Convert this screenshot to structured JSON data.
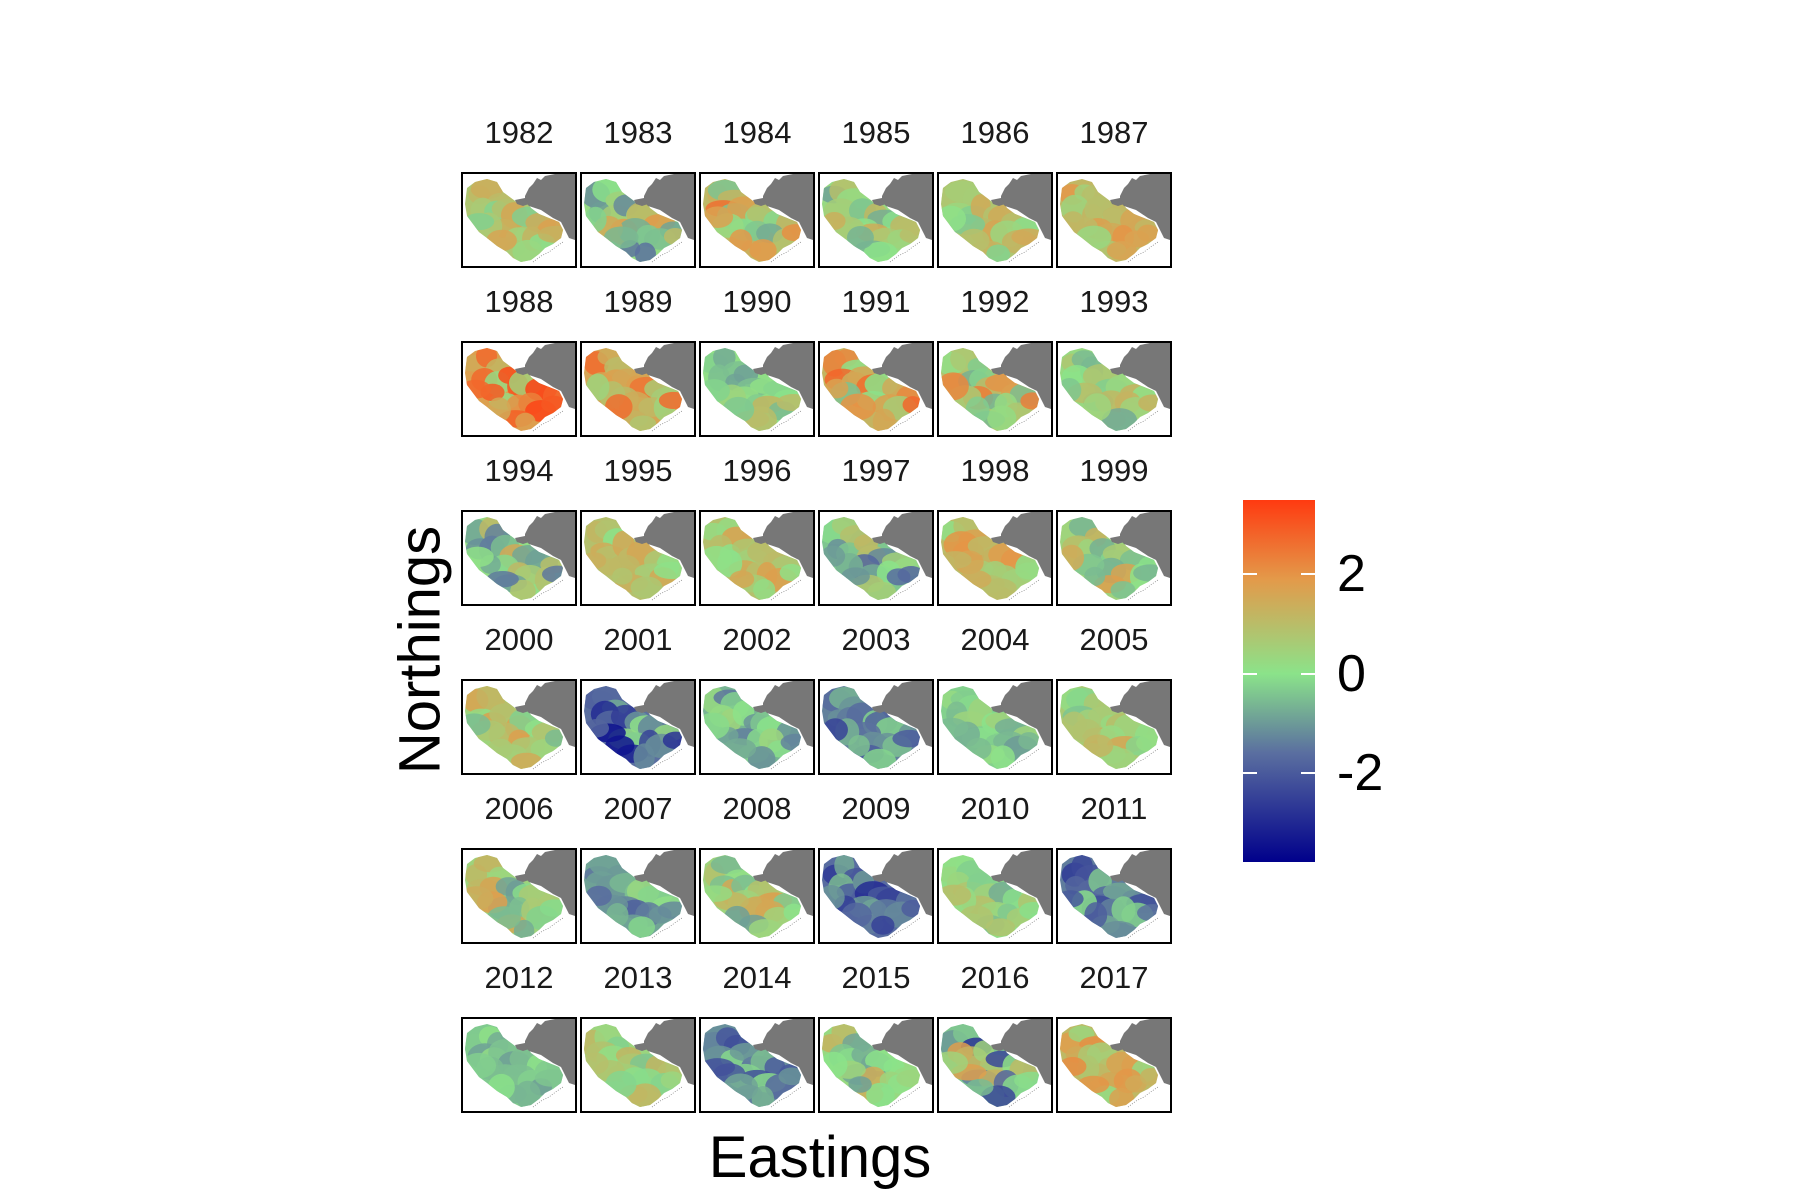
{
  "axes": {
    "xlabel": "Eastings",
    "ylabel": "Northings"
  },
  "chart_data": {
    "type": "heatmap",
    "title": "",
    "xlabel": "Eastings",
    "ylabel": "Northings",
    "facet_by": "year",
    "facets": [
      {
        "label": "1982",
        "color_range": [
          -0.5,
          2.0
        ]
      },
      {
        "label": "1983",
        "color_range": [
          -1.6,
          2.0
        ]
      },
      {
        "label": "1984",
        "color_range": [
          -0.8,
          3.0
        ]
      },
      {
        "label": "1985",
        "color_range": [
          -1.0,
          1.5
        ]
      },
      {
        "label": "1986",
        "color_range": [
          -0.5,
          2.0
        ]
      },
      {
        "label": "1987",
        "color_range": [
          0.3,
          2.0
        ]
      },
      {
        "label": "1988",
        "color_range": [
          0.0,
          3.5
        ]
      },
      {
        "label": "1989",
        "color_range": [
          0.2,
          3.0
        ]
      },
      {
        "label": "1990",
        "color_range": [
          -1.0,
          1.2
        ]
      },
      {
        "label": "1991",
        "color_range": [
          -0.6,
          3.0
        ]
      },
      {
        "label": "1992",
        "color_range": [
          -0.8,
          2.5
        ]
      },
      {
        "label": "1993",
        "color_range": [
          -0.8,
          1.3
        ]
      },
      {
        "label": "1994",
        "color_range": [
          -1.5,
          1.8
        ]
      },
      {
        "label": "1995",
        "color_range": [
          0.0,
          1.8
        ]
      },
      {
        "label": "1996",
        "color_range": [
          0.0,
          1.8
        ]
      },
      {
        "label": "1997",
        "color_range": [
          -2.0,
          1.2
        ]
      },
      {
        "label": "1998",
        "color_range": [
          0.0,
          2.0
        ]
      },
      {
        "label": "1999",
        "color_range": [
          -1.0,
          1.8
        ]
      },
      {
        "label": "2000",
        "color_range": [
          -1.0,
          1.8
        ]
      },
      {
        "label": "2001",
        "color_range": [
          -3.5,
          0.3
        ]
      },
      {
        "label": "2002",
        "color_range": [
          -1.8,
          0.5
        ]
      },
      {
        "label": "2003",
        "color_range": [
          -2.5,
          -0.2
        ]
      },
      {
        "label": "2004",
        "color_range": [
          -1.0,
          0.5
        ]
      },
      {
        "label": "2005",
        "color_range": [
          -0.5,
          1.8
        ]
      },
      {
        "label": "2006",
        "color_range": [
          -1.0,
          1.8
        ]
      },
      {
        "label": "2007",
        "color_range": [
          -2.0,
          0.3
        ]
      },
      {
        "label": "2008",
        "color_range": [
          -1.0,
          1.8
        ]
      },
      {
        "label": "2009",
        "color_range": [
          -3.0,
          -0.3
        ]
      },
      {
        "label": "2010",
        "color_range": [
          -0.8,
          1.0
        ]
      },
      {
        "label": "2011",
        "color_range": [
          -2.8,
          0.0
        ]
      },
      {
        "label": "2012",
        "color_range": [
          -1.0,
          0.3
        ]
      },
      {
        "label": "2013",
        "color_range": [
          -0.5,
          1.2
        ]
      },
      {
        "label": "2014",
        "color_range": [
          -2.5,
          0.2
        ]
      },
      {
        "label": "2015",
        "color_range": [
          -1.0,
          1.5
        ]
      },
      {
        "label": "2016",
        "color_range": [
          -2.8,
          2.0
        ]
      },
      {
        "label": "2017",
        "color_range": [
          0.0,
          2.2
        ]
      }
    ],
    "colorbar": {
      "range": [
        -3.8,
        3.5
      ],
      "ticks": [
        2,
        0,
        -2
      ],
      "tick_labels": [
        "2",
        "0",
        "-2"
      ],
      "colors": {
        "low": "#00008b",
        "mid_low": "#5a6ea0",
        "mid": "#8be38a",
        "mid_high": "#e39a4a",
        "high": "#ff3a10"
      }
    },
    "land_color": "#777777",
    "grid": false
  }
}
